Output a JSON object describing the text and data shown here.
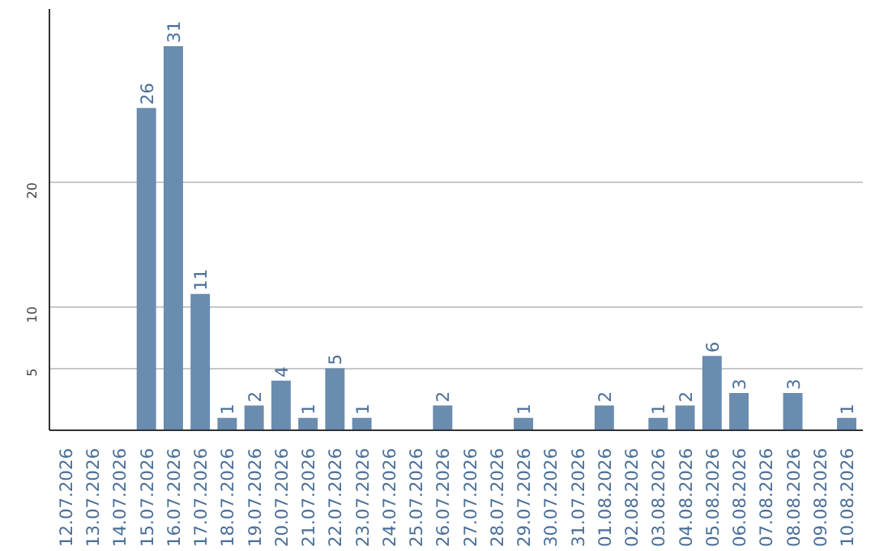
{
  "chart_data": {
    "type": "bar",
    "categories": [
      "12.07.2026",
      "13.07.2026",
      "14.07.2026",
      "15.07.2026",
      "16.07.2026",
      "17.07.2026",
      "18.07.2026",
      "19.07.2026",
      "20.07.2026",
      "21.07.2026",
      "22.07.2026",
      "23.07.2026",
      "24.07.2026",
      "25.07.2026",
      "26.07.2026",
      "27.07.2026",
      "28.07.2026",
      "29.07.2026",
      "30.07.2026",
      "31.07.2026",
      "01.08.2026",
      "02.08.2026",
      "03.08.2026",
      "04.08.2026",
      "05.08.2026",
      "06.08.2026",
      "07.08.2026",
      "08.08.2026",
      "09.08.2026",
      "10.08.2026"
    ],
    "values": [
      0,
      0,
      0,
      26,
      31,
      11,
      1,
      2,
      4,
      1,
      5,
      1,
      0,
      0,
      2,
      0,
      0,
      1,
      0,
      0,
      2,
      0,
      1,
      2,
      6,
      3,
      0,
      3,
      0,
      1
    ],
    "value_labels": [
      null,
      null,
      null,
      "26",
      "31",
      "11",
      "1",
      "2",
      "4",
      "1",
      "5",
      "1",
      null,
      null,
      "2",
      null,
      null,
      "1",
      null,
      null,
      "2",
      null,
      "1",
      "2",
      "6",
      "3",
      null,
      "3",
      null,
      "1"
    ],
    "color": "#6a8caf",
    "ylim": [
      0,
      34
    ],
    "yticks": [
      5,
      10,
      20
    ],
    "grid": "y"
  }
}
